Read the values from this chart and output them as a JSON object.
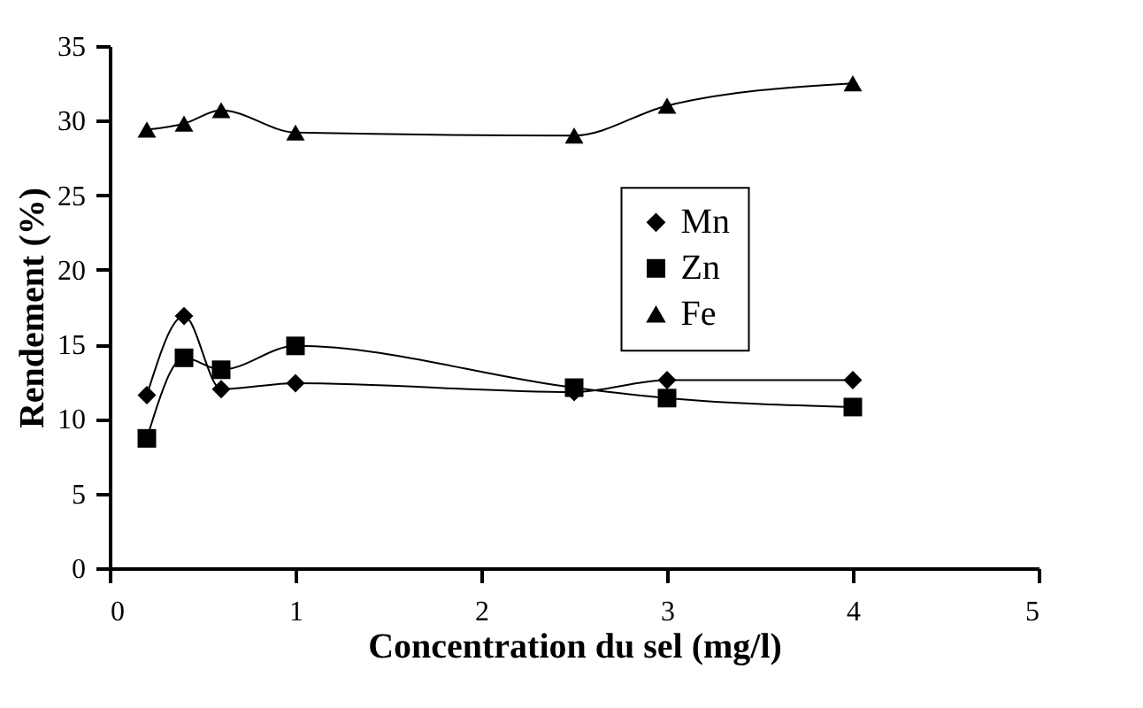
{
  "chart_data": {
    "type": "line",
    "xlabel": "Concentration du sel  (mg/l)",
    "ylabel": "Rendement (%)",
    "x": [
      0.2,
      0.4,
      0.6,
      1,
      2.5,
      3,
      4
    ],
    "series": [
      {
        "name": "Mn",
        "color": "#000000",
        "marker": "diamond",
        "values": [
          11.6,
          16.9,
          12.0,
          12.4,
          11.8,
          12.6,
          12.6
        ]
      },
      {
        "name": "Zn",
        "color": "#000000",
        "marker": "square",
        "values": [
          8.7,
          14.1,
          13.3,
          14.9,
          12.1,
          11.4,
          10.8
        ]
      },
      {
        "name": "Fe",
        "color": "#000000",
        "marker": "triangle",
        "values": [
          29.4,
          29.8,
          30.7,
          29.2,
          29.0,
          31.0,
          32.5
        ]
      }
    ],
    "xlim": [
      0,
      5
    ],
    "xticks": [
      0,
      1,
      2,
      3,
      4,
      5
    ],
    "ylim": [
      0,
      35
    ],
    "yticks": [
      0,
      5,
      10,
      15,
      20,
      25,
      30,
      35
    ],
    "grid": false,
    "legend": "right",
    "line_style": "solid"
  }
}
